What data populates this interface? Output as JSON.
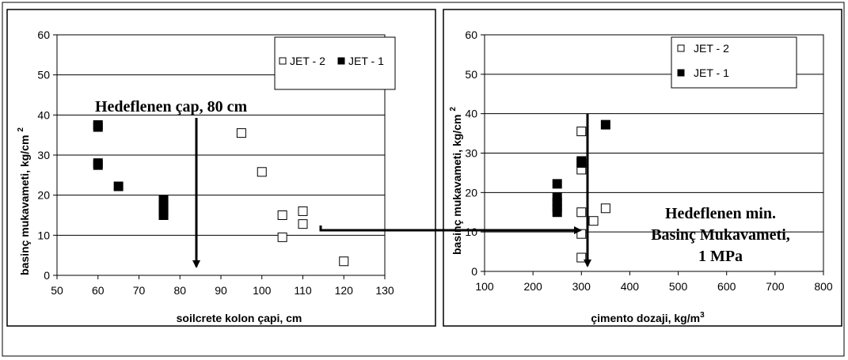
{
  "chart_data": [
    {
      "type": "scatter",
      "title": "",
      "xlabel": "soilcrete kolon çapi, cm",
      "ylabel": "basinç mukavameti, kg/cm",
      "ylabel_sup": "2",
      "xlim": [
        50,
        130
      ],
      "ylim": [
        0,
        60
      ],
      "xticks": [
        "50",
        "60",
        "70",
        "80",
        "90",
        "100",
        "110",
        "120",
        "130"
      ],
      "yticks": [
        "0",
        "10",
        "20",
        "30",
        "40",
        "50",
        "60"
      ],
      "grid": "horizontal",
      "legend": "top-right",
      "series": [
        {
          "name": "JET - 2",
          "marker": "open-square",
          "points": [
            [
              95,
              35.5
            ],
            [
              100,
              25.8
            ],
            [
              105,
              15
            ],
            [
              105,
              9.5
            ],
            [
              110,
              16
            ],
            [
              110,
              12.8
            ],
            [
              120,
              3.5
            ]
          ]
        },
        {
          "name": "JET - 1",
          "marker": "filled-square",
          "points": [
            [
              60,
              37.5
            ],
            [
              60,
              37
            ],
            [
              60,
              28
            ],
            [
              60,
              27.5
            ],
            [
              65,
              22.2
            ],
            [
              76,
              18.8
            ],
            [
              76,
              17.5
            ],
            [
              76,
              16.2
            ],
            [
              76,
              15
            ]
          ]
        }
      ],
      "annotation": "Hedeflenen çap, 80 cm"
    },
    {
      "type": "scatter",
      "title": "",
      "xlabel": "çimento dozaji, kg/m",
      "xlabel_sup": "3",
      "ylabel": "basinç mukavameti, kg/cm",
      "ylabel_sup": "2",
      "xlim": [
        100,
        800
      ],
      "ylim": [
        0,
        60
      ],
      "xticks": [
        "100",
        "200",
        "300",
        "400",
        "500",
        "600",
        "700",
        "800"
      ],
      "yticks": [
        "0",
        "10",
        "20",
        "30",
        "40",
        "50",
        "60"
      ],
      "grid": "horizontal",
      "legend": "top-right",
      "series": [
        {
          "name": "JET - 2",
          "marker": "open-square",
          "points": [
            [
              300,
              35.5
            ],
            [
              300,
              25.8
            ],
            [
              300,
              15
            ],
            [
              300,
              9.5
            ],
            [
              350,
              16
            ],
            [
              325,
              12.8
            ],
            [
              300,
              3.5
            ]
          ]
        },
        {
          "name": "JET - 1",
          "marker": "filled-square",
          "points": [
            [
              350,
              37.2
            ],
            [
              300,
              28
            ],
            [
              300,
              27.5
            ],
            [
              250,
              22.2
            ],
            [
              250,
              18.8
            ],
            [
              250,
              17.5
            ],
            [
              250,
              16.2
            ],
            [
              250,
              15
            ]
          ]
        }
      ],
      "annotation_lines": [
        "Hedeflenen min.",
        "Basinç Mukavameti,",
        "1 MPa"
      ]
    }
  ]
}
